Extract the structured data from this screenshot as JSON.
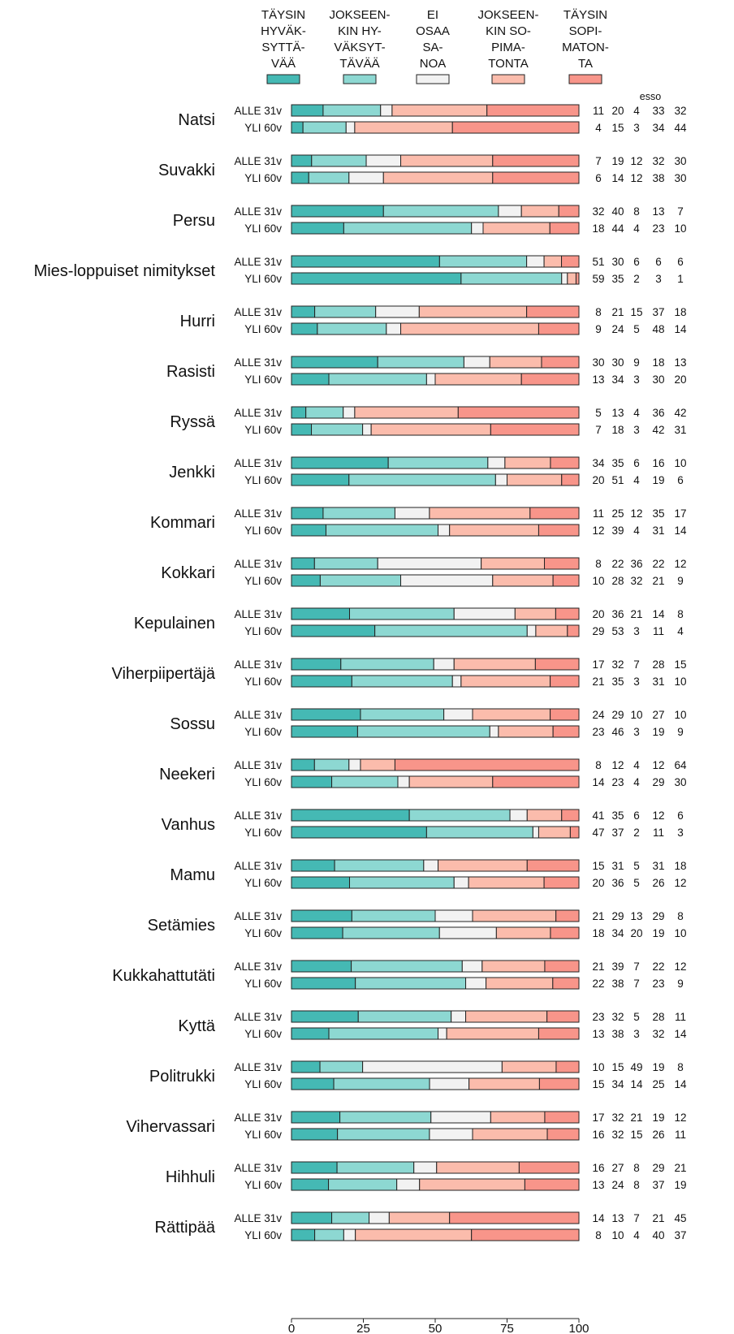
{
  "chart_data": {
    "type": "bar",
    "stacked": true,
    "orientation": "horizontal",
    "xlim": [
      0,
      100
    ],
    "xticks": [
      "0",
      "25",
      "50",
      "75",
      "100"
    ],
    "values_header": "esso",
    "legend": [
      {
        "lines": [
          "TÄYSIN",
          "HYVÄK-",
          "SYTTÄ-",
          "VÄÄ"
        ],
        "color": "#45b9b4"
      },
      {
        "lines": [
          "JOKSEEN-",
          "KIN HY-",
          "VÄKSYT-",
          "TÄVÄÄ"
        ],
        "color": "#8dd8d2"
      },
      {
        "lines": [
          "EI",
          "OSAA",
          "SA-",
          "NOA"
        ],
        "color": "#f2f2f2"
      },
      {
        "lines": [
          "JOKSEEN-",
          "KIN SO-",
          "PIMA-",
          "TONTA"
        ],
        "color": "#fbbcac"
      },
      {
        "lines": [
          "TÄYSIN",
          "SOPI-",
          "MATON-",
          "TA"
        ],
        "color": "#f8958a"
      }
    ],
    "groups": [
      "ALLE 31v",
      "YLI 60v"
    ],
    "categories": [
      {
        "label": "Natsi",
        "rows": [
          [
            11,
            20,
            4,
            33,
            32
          ],
          [
            4,
            15,
            3,
            34,
            44
          ]
        ]
      },
      {
        "label": "Suvakki",
        "rows": [
          [
            7,
            19,
            12,
            32,
            30
          ],
          [
            6,
            14,
            12,
            38,
            30
          ]
        ]
      },
      {
        "label": "Persu",
        "rows": [
          [
            32,
            40,
            8,
            13,
            7
          ],
          [
            18,
            44,
            4,
            23,
            10
          ]
        ]
      },
      {
        "label": "Mies-loppuiset nimitykset",
        "rows": [
          [
            51,
            30,
            6,
            6,
            6
          ],
          [
            59,
            35,
            2,
            3,
            1
          ]
        ]
      },
      {
        "label": "Hurri",
        "rows": [
          [
            8,
            21,
            15,
            37,
            18
          ],
          [
            9,
            24,
            5,
            48,
            14
          ]
        ]
      },
      {
        "label": "Rasisti",
        "rows": [
          [
            30,
            30,
            9,
            18,
            13
          ],
          [
            13,
            34,
            3,
            30,
            20
          ]
        ]
      },
      {
        "label": "Ryssä",
        "rows": [
          [
            5,
            13,
            4,
            36,
            42
          ],
          [
            7,
            18,
            3,
            42,
            31
          ]
        ]
      },
      {
        "label": "Jenkki",
        "rows": [
          [
            34,
            35,
            6,
            16,
            10
          ],
          [
            20,
            51,
            4,
            19,
            6
          ]
        ]
      },
      {
        "label": "Kommari",
        "rows": [
          [
            11,
            25,
            12,
            35,
            17
          ],
          [
            12,
            39,
            4,
            31,
            14
          ]
        ]
      },
      {
        "label": "Kokkari",
        "rows": [
          [
            8,
            22,
            36,
            22,
            12
          ],
          [
            10,
            28,
            32,
            21,
            9
          ]
        ]
      },
      {
        "label": "Kepulainen",
        "rows": [
          [
            20,
            36,
            21,
            14,
            8
          ],
          [
            29,
            53,
            3,
            11,
            4
          ]
        ]
      },
      {
        "label": "Viherpiipertäjä",
        "rows": [
          [
            17,
            32,
            7,
            28,
            15
          ],
          [
            21,
            35,
            3,
            31,
            10
          ]
        ]
      },
      {
        "label": "Sossu",
        "rows": [
          [
            24,
            29,
            10,
            27,
            10
          ],
          [
            23,
            46,
            3,
            19,
            9
          ]
        ]
      },
      {
        "label": "Neekeri",
        "rows": [
          [
            8,
            12,
            4,
            12,
            64
          ],
          [
            14,
            23,
            4,
            29,
            30
          ]
        ]
      },
      {
        "label": "Vanhus",
        "rows": [
          [
            41,
            35,
            6,
            12,
            6
          ],
          [
            47,
            37,
            2,
            11,
            3
          ]
        ]
      },
      {
        "label": "Mamu",
        "rows": [
          [
            15,
            31,
            5,
            31,
            18
          ],
          [
            20,
            36,
            5,
            26,
            12
          ]
        ]
      },
      {
        "label": "Setämies",
        "rows": [
          [
            21,
            29,
            13,
            29,
            8
          ],
          [
            18,
            34,
            20,
            19,
            10
          ]
        ]
      },
      {
        "label": "Kukkahattutäti",
        "rows": [
          [
            21,
            39,
            7,
            22,
            12
          ],
          [
            22,
            38,
            7,
            23,
            9
          ]
        ]
      },
      {
        "label": "Kyttä",
        "rows": [
          [
            23,
            32,
            5,
            28,
            11
          ],
          [
            13,
            38,
            3,
            32,
            14
          ]
        ]
      },
      {
        "label": "Politrukki",
        "rows": [
          [
            10,
            15,
            49,
            19,
            8
          ],
          [
            15,
            34,
            14,
            25,
            14
          ]
        ]
      },
      {
        "label": "Vihervassari",
        "rows": [
          [
            17,
            32,
            21,
            19,
            12
          ],
          [
            16,
            32,
            15,
            26,
            11
          ]
        ]
      },
      {
        "label": "Hihhuli",
        "rows": [
          [
            16,
            27,
            8,
            29,
            21
          ],
          [
            13,
            24,
            8,
            37,
            19
          ]
        ]
      },
      {
        "label": "Rättipää",
        "rows": [
          [
            14,
            13,
            7,
            21,
            45
          ],
          [
            8,
            10,
            4,
            40,
            37
          ]
        ]
      }
    ]
  }
}
